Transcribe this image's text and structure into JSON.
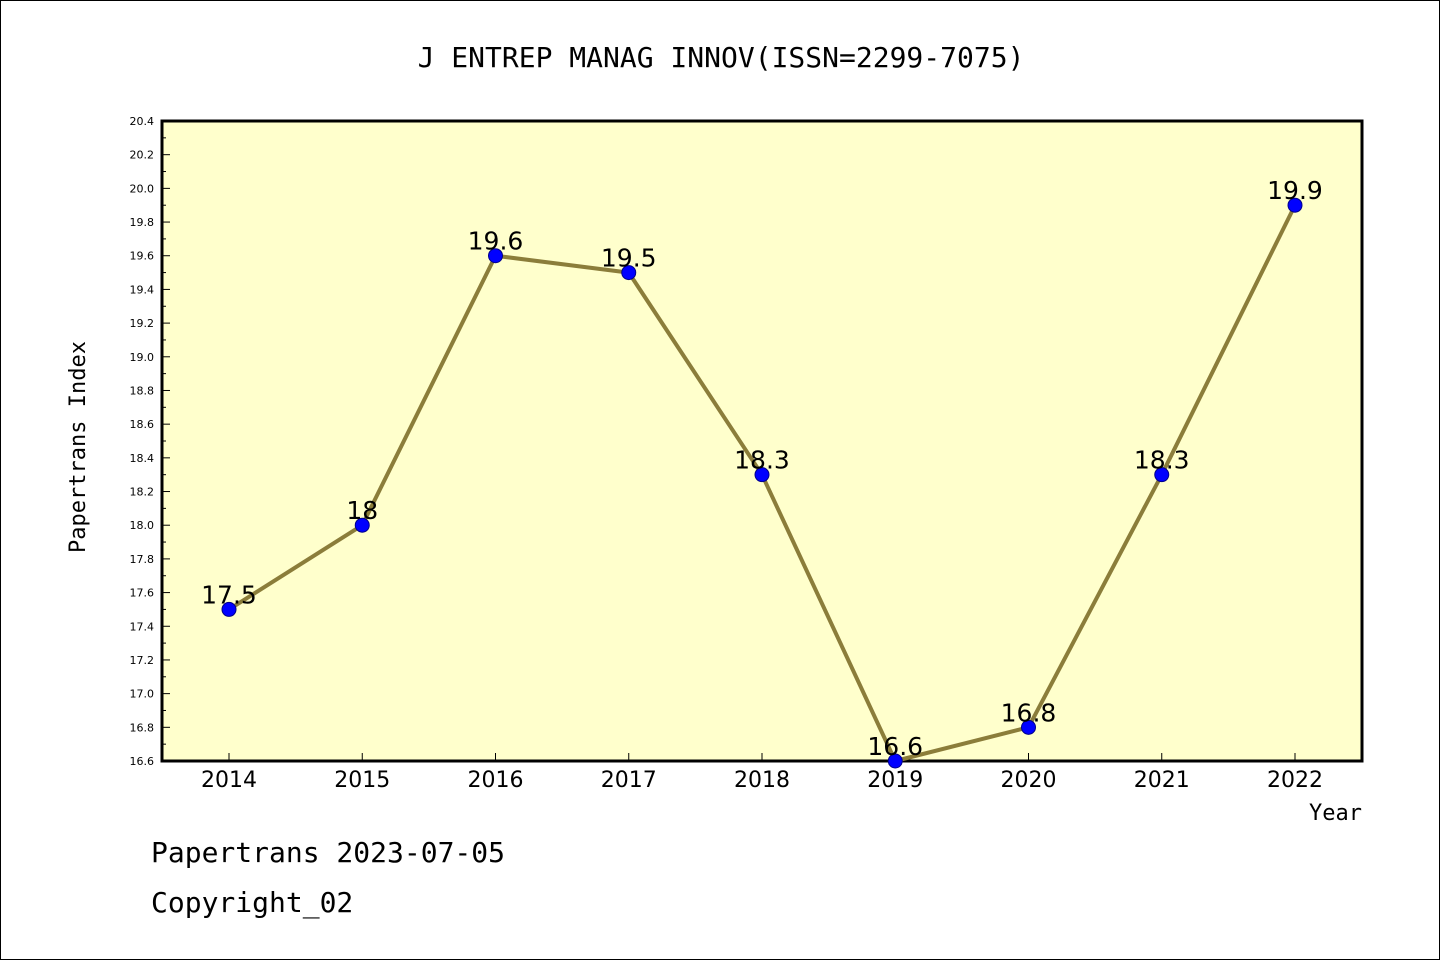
{
  "chart_data": {
    "type": "line",
    "title": "J ENTREP MANAG INNOV(ISSN=2299-7075)",
    "xlabel": "Year",
    "ylabel": "Papertrans Index",
    "categories": [
      "2014",
      "2015",
      "2016",
      "2017",
      "2018",
      "2019",
      "2020",
      "2021",
      "2022"
    ],
    "values": [
      17.5,
      18,
      19.6,
      19.5,
      18.3,
      16.6,
      16.8,
      18.3,
      19.9
    ],
    "data_labels": [
      "17.5",
      "18",
      "19.6",
      "19.5",
      "18.3",
      "16.6",
      "16.8",
      "18.3",
      "19.9"
    ],
    "ylim": [
      16.6,
      20.4
    ],
    "yticks": [
      "16.6",
      "16.8",
      "17.0",
      "17.2",
      "17.4",
      "17.6",
      "17.8",
      "18.0",
      "18.2",
      "18.4",
      "18.6",
      "18.8",
      "19.0",
      "19.2",
      "19.4",
      "19.6",
      "19.8",
      "20.0",
      "20.2",
      "20.4"
    ],
    "grid": false,
    "colors": {
      "plot_background": "#ffffcc",
      "line": "#8b7d3a",
      "marker": "#0000ff",
      "marker_edge": "#00008b"
    }
  },
  "footer": {
    "date_line": "Papertrans 2023-07-05",
    "copyright": "Copyright_02"
  }
}
